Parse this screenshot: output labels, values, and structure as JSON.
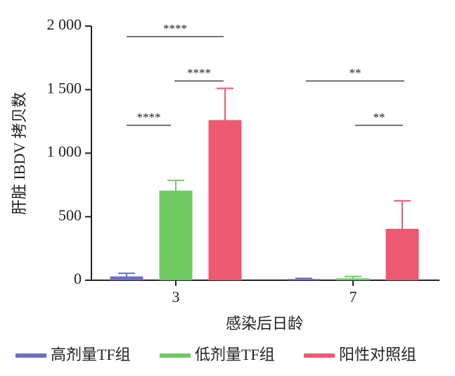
{
  "chart_data": {
    "type": "bar",
    "y_label": "肝脏 IBDV 拷贝数",
    "x_label": "感染后日龄",
    "categories": [
      "3",
      "7"
    ],
    "series": [
      {
        "name": "高剂量TF组",
        "color": "#6b70c4",
        "values": [
          30,
          10
        ],
        "errors": [
          25,
          5
        ]
      },
      {
        "name": "低剂量TF组",
        "color": "#6fca62",
        "values": [
          705,
          15
        ],
        "errors": [
          80,
          15
        ]
      },
      {
        "name": "阳性对照组",
        "color": "#ec5a72",
        "values": [
          1260,
          405
        ],
        "errors": [
          250,
          220
        ]
      }
    ],
    "ylim": [
      0,
      2000
    ],
    "yticks": [
      0,
      500,
      {
        "value": 1000,
        "label": "1 000"
      },
      {
        "value": 1500,
        "label": "1 500"
      },
      {
        "value": 2000,
        "label": "2 000"
      }
    ],
    "annotations": [
      "****",
      "****",
      "****",
      "**",
      "**"
    ]
  }
}
